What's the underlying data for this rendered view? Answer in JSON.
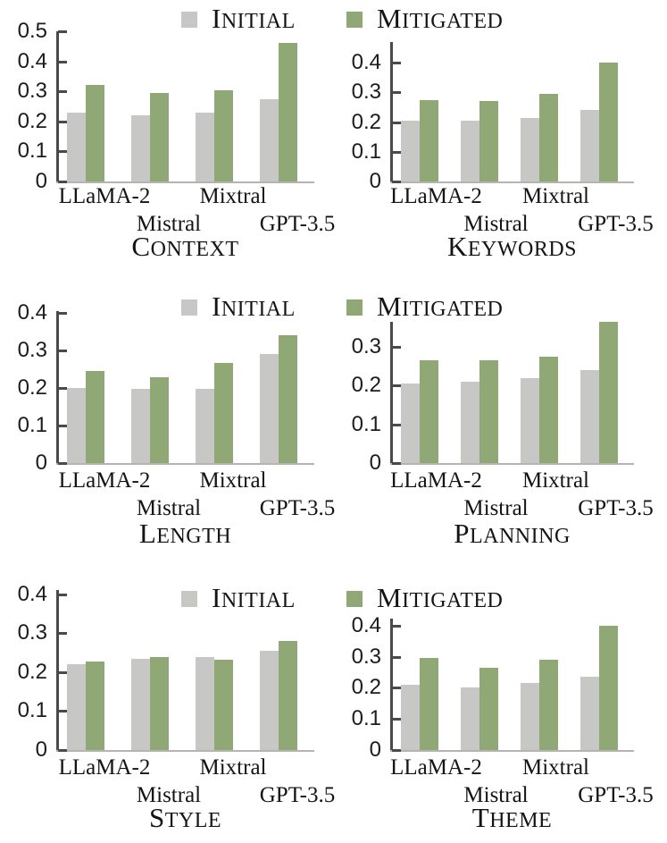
{
  "figure": {
    "type": "grouped-bar-figure",
    "models": [
      "LLaMA-2",
      "Mistral",
      "Mixtral",
      "GPT-3.5"
    ],
    "legend": {
      "initial_label": "INITIAL",
      "mitigated_label": "MITIGATED",
      "initial_color": "#c7c7c5",
      "mitigated_color": "#8fa876"
    },
    "axis_color": "#4a4a4a",
    "baseline_color": "#b4b4b1"
  },
  "chart_data": [
    {
      "type": "bar",
      "title": "CONTEXT",
      "categories": [
        "LLaMA-2",
        "Mistral",
        "Mixtral",
        "GPT-3.5"
      ],
      "series": [
        {
          "name": "INITIAL",
          "color": "#c7c7c5",
          "values": [
            0.23,
            0.22,
            0.23,
            0.275
          ]
        },
        {
          "name": "MITIGATED",
          "color": "#8fa876",
          "values": [
            0.32,
            0.295,
            0.305,
            0.46
          ]
        }
      ],
      "yticks": [
        0,
        0.1,
        0.2,
        0.3,
        0.4,
        0.5
      ],
      "ylim": [
        0,
        0.5
      ],
      "grid": false,
      "legend_visible": "INITIAL",
      "legend_position": "top"
    },
    {
      "type": "bar",
      "title": "KEYWORDS",
      "categories": [
        "LLaMA-2",
        "Mistral",
        "Mixtral",
        "GPT-3.5"
      ],
      "series": [
        {
          "name": "INITIAL",
          "color": "#c7c7c5",
          "values": [
            0.205,
            0.205,
            0.215,
            0.24
          ]
        },
        {
          "name": "MITIGATED",
          "color": "#8fa876",
          "values": [
            0.275,
            0.27,
            0.295,
            0.4
          ]
        }
      ],
      "yticks": [
        0,
        0.1,
        0.2,
        0.3,
        0.4
      ],
      "ylim": [
        0,
        0.45
      ],
      "grid": false,
      "legend_visible": "MITIGATED",
      "legend_position": "top"
    },
    {
      "type": "bar",
      "title": "LENGTH",
      "categories": [
        "LLaMA-2",
        "Mistral",
        "Mixtral",
        "GPT-3.5"
      ],
      "series": [
        {
          "name": "INITIAL",
          "color": "#c7c7c5",
          "values": [
            0.2,
            0.197,
            0.197,
            0.29
          ]
        },
        {
          "name": "MITIGATED",
          "color": "#8fa876",
          "values": [
            0.245,
            0.227,
            0.267,
            0.34
          ]
        }
      ],
      "yticks": [
        0,
        0.1,
        0.2,
        0.3,
        0.4
      ],
      "ylim": [
        0,
        0.4
      ],
      "grid": false,
      "legend_visible": "INITIAL",
      "legend_position": "top"
    },
    {
      "type": "bar",
      "title": "PLANNING",
      "categories": [
        "LLaMA-2",
        "Mistral",
        "Mixtral",
        "GPT-3.5"
      ],
      "series": [
        {
          "name": "INITIAL",
          "color": "#c7c7c5",
          "values": [
            0.205,
            0.21,
            0.22,
            0.24
          ]
        },
        {
          "name": "MITIGATED",
          "color": "#8fa876",
          "values": [
            0.265,
            0.265,
            0.275,
            0.365
          ]
        }
      ],
      "yticks": [
        0,
        0.1,
        0.2,
        0.3
      ],
      "ylim": [
        0,
        0.365
      ],
      "grid": false,
      "legend_visible": "MITIGATED",
      "legend_position": "top"
    },
    {
      "type": "bar",
      "title": "STYLE",
      "categories": [
        "LLaMA-2",
        "Mistral",
        "Mixtral",
        "GPT-3.5"
      ],
      "series": [
        {
          "name": "INITIAL",
          "color": "#c7c7c5",
          "values": [
            0.22,
            0.233,
            0.238,
            0.255
          ]
        },
        {
          "name": "MITIGATED",
          "color": "#8fa876",
          "values": [
            0.227,
            0.238,
            0.232,
            0.28
          ]
        }
      ],
      "yticks": [
        0,
        0.1,
        0.2,
        0.3,
        0.4
      ],
      "ylim": [
        0,
        0.41
      ],
      "grid": false,
      "legend_visible": "INITIAL",
      "legend_position": "top"
    },
    {
      "type": "bar",
      "title": "THEME",
      "categories": [
        "LLaMA-2",
        "Mistral",
        "Mixtral",
        "GPT-3.5"
      ],
      "series": [
        {
          "name": "INITIAL",
          "color": "#c7c7c5",
          "values": [
            0.21,
            0.2,
            0.215,
            0.235
          ]
        },
        {
          "name": "MITIGATED",
          "color": "#8fa876",
          "values": [
            0.295,
            0.265,
            0.29,
            0.4
          ]
        }
      ],
      "yticks": [
        0,
        0.1,
        0.2,
        0.3,
        0.4
      ],
      "ylim": [
        0,
        0.42
      ],
      "grid": false,
      "legend_visible": "MITIGATED",
      "legend_position": "top"
    }
  ]
}
